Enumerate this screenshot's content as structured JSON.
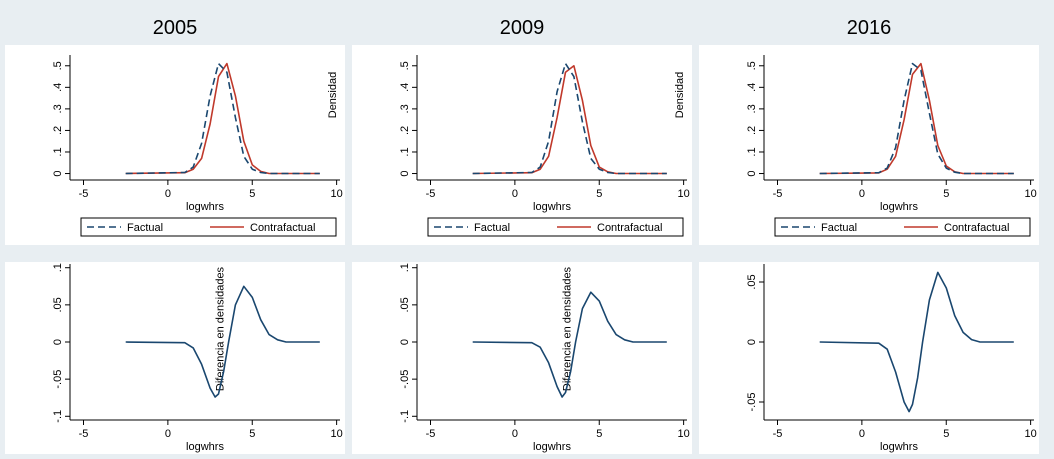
{
  "colors": {
    "background": "#e8eef2",
    "plot_area": "#ffffff",
    "factual": "#1a476f",
    "contrafactual": "#c0392b",
    "difference": "#1a476f"
  },
  "legend": {
    "factual": "Factual",
    "contrafactual": "Contrafactual"
  },
  "chart_data": [
    {
      "type": "line",
      "panel": "2005 density",
      "title": "2005",
      "xlabel": "logwhrs",
      "ylabel": "Densidad",
      "xlim": [
        -5.8,
        10.2
      ],
      "ylim": [
        -0.03,
        0.55
      ],
      "xticks": [
        -5,
        0,
        5,
        10
      ],
      "xtick_labels": [
        "-5",
        "0",
        "5",
        "10"
      ],
      "yticks": [
        0,
        0.1,
        0.2,
        0.3,
        0.4,
        0.5
      ],
      "ytick_labels": [
        "0",
        ".1",
        ".2",
        ".3",
        ".4",
        ".5"
      ],
      "grid": false,
      "legend": "below",
      "series": [
        {
          "name": "Factual",
          "style": "dashed",
          "color": "#1a476f",
          "x": [
            -2.5,
            1.0,
            1.5,
            2.0,
            2.5,
            3.0,
            3.5,
            4.0,
            4.5,
            5.0,
            5.5,
            6.0,
            9.0
          ],
          "y": [
            0.0,
            0.005,
            0.03,
            0.14,
            0.36,
            0.51,
            0.47,
            0.26,
            0.08,
            0.02,
            0.005,
            0.0,
            0.0
          ]
        },
        {
          "name": "Contrafactual",
          "style": "solid",
          "color": "#c0392b",
          "x": [
            -2.5,
            1.0,
            1.5,
            2.0,
            2.5,
            3.0,
            3.5,
            4.0,
            4.5,
            5.0,
            5.5,
            6.0,
            9.0
          ],
          "y": [
            0.0,
            0.004,
            0.02,
            0.07,
            0.23,
            0.45,
            0.51,
            0.36,
            0.15,
            0.04,
            0.01,
            0.0,
            0.0
          ]
        }
      ]
    },
    {
      "type": "line",
      "panel": "2009 density",
      "title": "2009",
      "xlabel": "logwhrs",
      "ylabel": "Densidad",
      "xlim": [
        -5.8,
        10.2
      ],
      "ylim": [
        -0.03,
        0.55
      ],
      "xticks": [
        -5,
        0,
        5,
        10
      ],
      "xtick_labels": [
        "-5",
        "0",
        "5",
        "10"
      ],
      "yticks": [
        0,
        0.1,
        0.2,
        0.3,
        0.4,
        0.5
      ],
      "ytick_labels": [
        "0",
        ".1",
        ".2",
        ".3",
        ".4",
        ".5"
      ],
      "grid": false,
      "legend": "below",
      "series": [
        {
          "name": "Factual",
          "style": "dashed",
          "color": "#1a476f",
          "x": [
            -2.5,
            1.0,
            1.5,
            2.0,
            2.5,
            3.0,
            3.5,
            4.0,
            4.5,
            5.0,
            5.5,
            6.0,
            9.0
          ],
          "y": [
            0.0,
            0.005,
            0.03,
            0.15,
            0.38,
            0.51,
            0.45,
            0.24,
            0.07,
            0.02,
            0.005,
            0.0,
            0.0
          ]
        },
        {
          "name": "Contrafactual",
          "style": "solid",
          "color": "#c0392b",
          "x": [
            -2.5,
            1.0,
            1.5,
            2.0,
            2.5,
            3.0,
            3.5,
            4.0,
            4.5,
            5.0,
            5.5,
            6.0,
            9.0
          ],
          "y": [
            0.0,
            0.004,
            0.02,
            0.08,
            0.26,
            0.47,
            0.5,
            0.34,
            0.13,
            0.03,
            0.008,
            0.0,
            0.0
          ]
        }
      ]
    },
    {
      "type": "line",
      "panel": "2016 density",
      "title": "2016",
      "xlabel": "logwhrs",
      "ylabel": "",
      "xlim": [
        -5.8,
        10.2
      ],
      "ylim": [
        -0.03,
        0.55
      ],
      "xticks": [
        -5,
        0,
        5,
        10
      ],
      "xtick_labels": [
        "-5",
        "0",
        "5",
        "10"
      ],
      "yticks": [
        0,
        0.1,
        0.2,
        0.3,
        0.4,
        0.5
      ],
      "ytick_labels": [
        "0",
        ".1",
        ".2",
        ".3",
        ".4",
        ".5"
      ],
      "grid": false,
      "legend": "below",
      "series": [
        {
          "name": "Factual",
          "style": "dashed",
          "color": "#1a476f",
          "x": [
            -2.5,
            1.0,
            1.5,
            2.0,
            2.5,
            3.0,
            3.5,
            4.0,
            4.5,
            5.0,
            5.5,
            6.0,
            9.0
          ],
          "y": [
            0.0,
            0.004,
            0.025,
            0.12,
            0.34,
            0.51,
            0.48,
            0.28,
            0.09,
            0.025,
            0.006,
            0.0,
            0.0
          ]
        },
        {
          "name": "Contrafactual",
          "style": "solid",
          "color": "#c0392b",
          "x": [
            -2.5,
            1.0,
            1.5,
            2.0,
            2.5,
            3.0,
            3.5,
            4.0,
            4.5,
            5.0,
            5.5,
            6.0,
            9.0
          ],
          "y": [
            0.0,
            0.003,
            0.02,
            0.08,
            0.25,
            0.46,
            0.51,
            0.34,
            0.13,
            0.035,
            0.008,
            0.0,
            0.0
          ]
        }
      ]
    },
    {
      "type": "line",
      "panel": "2005 difference",
      "title": "",
      "xlabel": "logwhrs",
      "ylabel": "Diferencia en densidades",
      "xlim": [
        -5.8,
        10.2
      ],
      "ylim": [
        -0.105,
        0.105
      ],
      "xticks": [
        -5,
        0,
        5,
        10
      ],
      "xtick_labels": [
        "-5",
        "0",
        "5",
        "10"
      ],
      "yticks": [
        -0.1,
        -0.05,
        0,
        0.05,
        0.1
      ],
      "ytick_labels": [
        "-.1",
        "-.05",
        "0",
        ".05",
        ".1"
      ],
      "grid": false,
      "series": [
        {
          "color": "#1a476f",
          "x": [
            -2.5,
            1.0,
            1.5,
            2.0,
            2.5,
            2.8,
            3.0,
            3.3,
            3.6,
            4.0,
            4.5,
            5.0,
            5.5,
            6.0,
            6.5,
            7.0,
            9.0
          ],
          "y": [
            0.0,
            -0.001,
            -0.008,
            -0.03,
            -0.062,
            -0.074,
            -0.07,
            -0.04,
            0.0,
            0.05,
            0.075,
            0.06,
            0.03,
            0.01,
            0.003,
            0.0,
            0.0
          ]
        }
      ]
    },
    {
      "type": "line",
      "panel": "2009 difference",
      "title": "",
      "xlabel": "logwhrs",
      "ylabel": "Diferencia en densidades",
      "xlim": [
        -5.8,
        10.2
      ],
      "ylim": [
        -0.105,
        0.105
      ],
      "xticks": [
        -5,
        0,
        5,
        10
      ],
      "xtick_labels": [
        "-5",
        "0",
        "5",
        "10"
      ],
      "yticks": [
        -0.1,
        -0.05,
        0,
        0.05,
        0.1
      ],
      "ytick_labels": [
        "-.1",
        "-.05",
        "0",
        ".05",
        ".1"
      ],
      "grid": false,
      "series": [
        {
          "color": "#1a476f",
          "x": [
            -2.5,
            1.0,
            1.5,
            2.0,
            2.5,
            2.8,
            3.0,
            3.3,
            3.6,
            4.0,
            4.5,
            5.0,
            5.5,
            6.0,
            6.5,
            7.0,
            9.0
          ],
          "y": [
            0.0,
            -0.001,
            -0.007,
            -0.028,
            -0.06,
            -0.074,
            -0.068,
            -0.04,
            0.0,
            0.045,
            0.067,
            0.055,
            0.028,
            0.01,
            0.003,
            0.0,
            0.0
          ]
        }
      ]
    },
    {
      "type": "line",
      "panel": "2016 difference",
      "title": "",
      "xlabel": "logwhrs",
      "ylabel": "",
      "xlim": [
        -5.8,
        10.2
      ],
      "ylim": [
        -0.065,
        0.065
      ],
      "xticks": [
        -5,
        0,
        5,
        10
      ],
      "xtick_labels": [
        "-5",
        "0",
        "5",
        "10"
      ],
      "yticks": [
        -0.05,
        0,
        0.05
      ],
      "ytick_labels": [
        "-.05",
        "0",
        ".05"
      ],
      "grid": false,
      "series": [
        {
          "color": "#1a476f",
          "x": [
            -2.5,
            1.0,
            1.5,
            2.0,
            2.5,
            2.8,
            3.0,
            3.3,
            3.6,
            4.0,
            4.5,
            5.0,
            5.5,
            6.0,
            6.5,
            7.0,
            9.0
          ],
          "y": [
            0.0,
            -0.001,
            -0.006,
            -0.025,
            -0.05,
            -0.058,
            -0.052,
            -0.03,
            0.0,
            0.035,
            0.058,
            0.045,
            0.022,
            0.008,
            0.002,
            0.0,
            0.0
          ]
        }
      ]
    }
  ]
}
